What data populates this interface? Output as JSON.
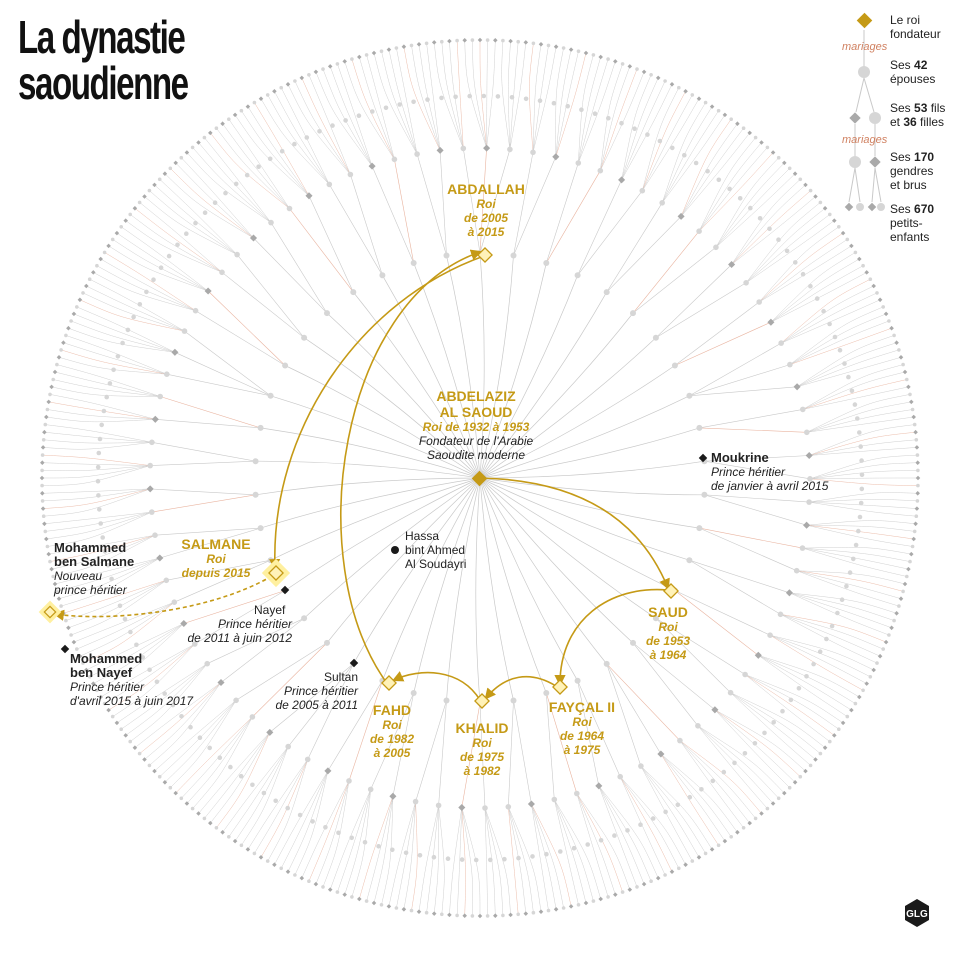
{
  "title": {
    "line1": "La dynastie",
    "line2": "saoudienne"
  },
  "colors": {
    "gold": "#c59a16",
    "grey_line": "#c9c9c9",
    "marriage_line": "#e9b4a0",
    "grey_dot": "#d6d6d6",
    "grey_diamond": "#a9a9a9",
    "black": "#1a1a1a"
  },
  "legend": {
    "founder": "Le roi fondateur",
    "marriages1": "mariages",
    "wives_pre": "Ses ",
    "wives_num": "42",
    "wives_post": " épouses",
    "children_pre": "Ses ",
    "sons_num": "53",
    "sons_post": " fils",
    "children_mid": "et ",
    "daughters_num": "36",
    "daughters_post": " filles",
    "marriages2": "mariages",
    "inlaws_pre": "Ses ",
    "inlaws_num": "170",
    "inlaws_post1": "gendres",
    "inlaws_post2": "et brus",
    "grand_pre": "Ses ",
    "grand_num": "670",
    "grand_post1": "petits-",
    "grand_post2": "enfants"
  },
  "founder": {
    "name1": "ABDELAZIZ",
    "name2": "AL SAOUD",
    "reign": "Roi de 1932 à 1953",
    "desc1": "Fondateur de l'Arabie",
    "desc2": "Saoudite moderne"
  },
  "kings": {
    "abdallah": {
      "name": "ABDALLAH",
      "l1": "Roi",
      "l2": "de 2005",
      "l3": "à 2015"
    },
    "saud": {
      "name": "SAUD",
      "l1": "Roi",
      "l2": "de 1953",
      "l3": "à 1964"
    },
    "faycal": {
      "name": "FAYÇAL II",
      "l1": "Roi",
      "l2": "de 1964",
      "l3": "à 1975"
    },
    "khalid": {
      "name": "KHALID",
      "l1": "Roi",
      "l2": "de 1975",
      "l3": "à 1982"
    },
    "fahd": {
      "name": "FAHD",
      "l1": "Roi",
      "l2": "de 1982",
      "l3": "à 2005"
    },
    "salmane": {
      "name": "SALMANE",
      "l1": "Roi",
      "l2": "depuis 2015"
    }
  },
  "people": {
    "moukrine": {
      "name": "Moukrine",
      "l1": "Prince héritier",
      "l2": "de janvier à avril 2015"
    },
    "hassa": {
      "l1": "Hassa",
      "l2": "bint Ahmed",
      "l3": "Al Soudayri"
    },
    "nayef": {
      "name": "Nayef",
      "l1": "Prince héritier",
      "l2": "de 2011 à juin 2012"
    },
    "sultan": {
      "name": "Sultan",
      "l1": "Prince héritier",
      "l2": "de 2005 à 2011"
    },
    "mbs": {
      "name1": "Mohammed",
      "name2": "ben Salmane",
      "l1": "Nouveau",
      "l2": "prince héritier"
    },
    "mbn": {
      "name1": "Mohammed",
      "name2": "ben Nayef",
      "l1": "Prince héritier",
      "l2": "d'avril 2015 à juin 2017"
    }
  },
  "logo": {
    "text": "GLG"
  }
}
